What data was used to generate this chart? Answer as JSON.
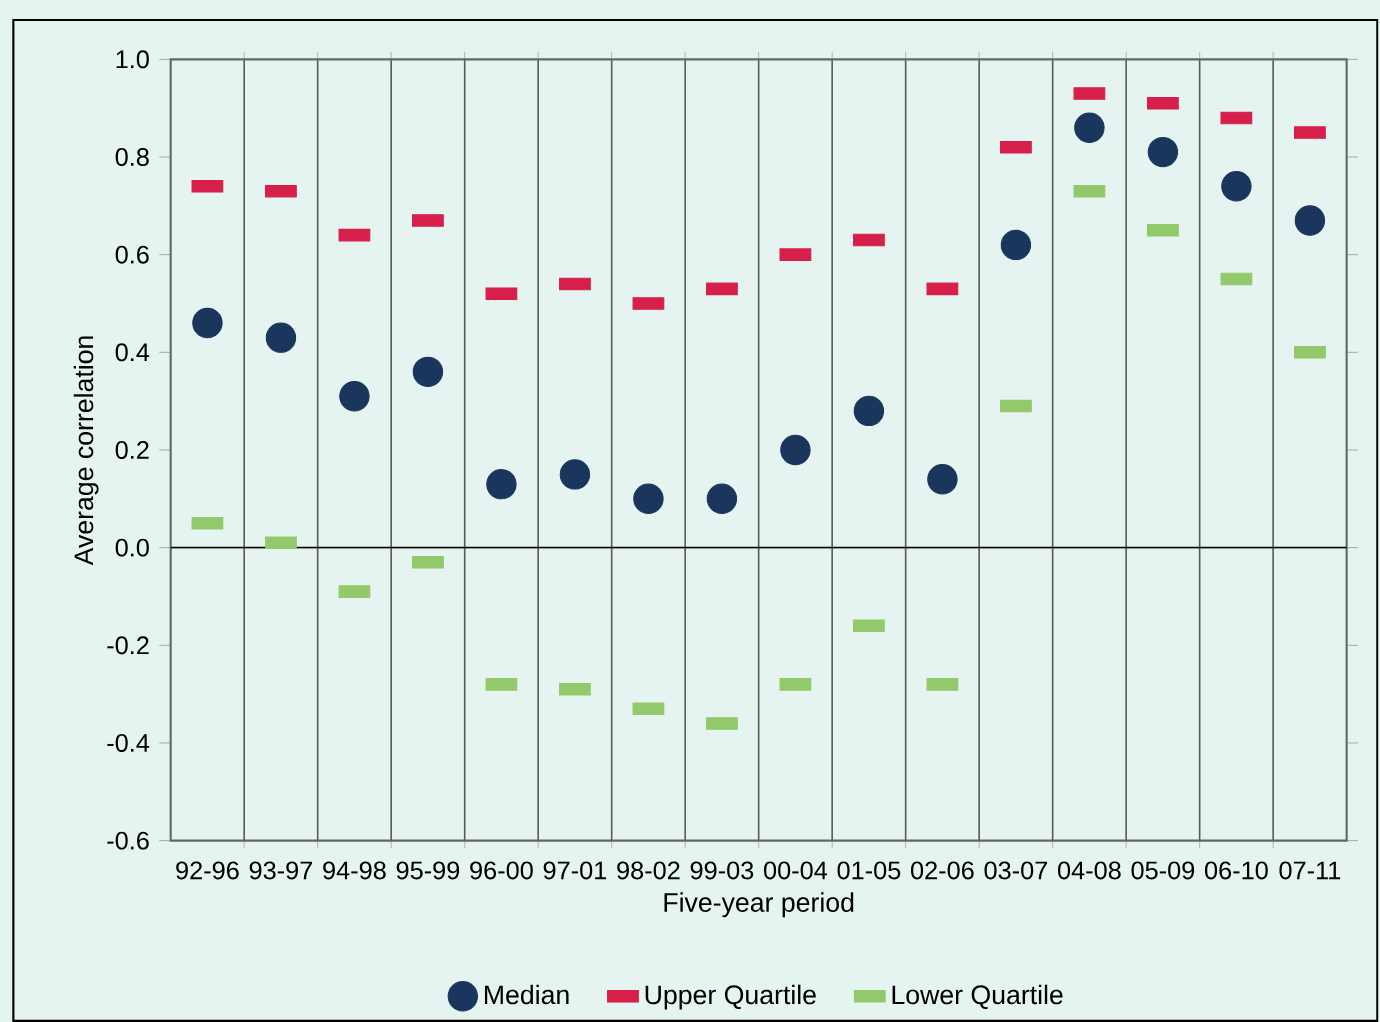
{
  "chart_data": {
    "type": "scatter",
    "xlabel": "Five-year period",
    "ylabel": "Average correlation",
    "categories": [
      "92-96",
      "93-97",
      "94-98",
      "95-99",
      "96-00",
      "97-01",
      "98-02",
      "99-03",
      "00-04",
      "01-05",
      "02-06",
      "03-07",
      "04-08",
      "05-09",
      "06-10",
      "07-11"
    ],
    "series": [
      {
        "name": "Median",
        "color": "#1b365d",
        "marker": "circle",
        "values": [
          0.46,
          0.43,
          0.31,
          0.36,
          0.13,
          0.15,
          0.1,
          0.1,
          0.2,
          0.28,
          0.14,
          0.62,
          0.86,
          0.81,
          0.74,
          0.67
        ]
      },
      {
        "name": "Upper Quartile",
        "color": "#d6204b",
        "marker": "square",
        "values": [
          0.74,
          0.73,
          0.64,
          0.67,
          0.52,
          0.54,
          0.5,
          0.53,
          0.6,
          0.63,
          0.53,
          0.82,
          0.93,
          0.91,
          0.88,
          0.85
        ]
      },
      {
        "name": "Lower Quartile",
        "color": "#92c96a",
        "marker": "square",
        "values": [
          0.05,
          0.01,
          -0.09,
          -0.03,
          -0.28,
          -0.29,
          -0.33,
          -0.36,
          -0.28,
          -0.16,
          -0.28,
          0.29,
          0.73,
          0.65,
          0.55,
          0.4
        ]
      }
    ],
    "ylim": [
      -0.6,
      1.0
    ],
    "yticks": [
      -0.6,
      -0.4,
      -0.2,
      {
        "value": 0,
        "label": "0.0"
      },
      0.2,
      0.4,
      0.6,
      0.8,
      {
        "value": 1,
        "label": "1.0"
      }
    ],
    "grid": "x",
    "legend": "bottom",
    "ref_lines": [
      {
        "axis": "y",
        "value": 0
      }
    ]
  }
}
